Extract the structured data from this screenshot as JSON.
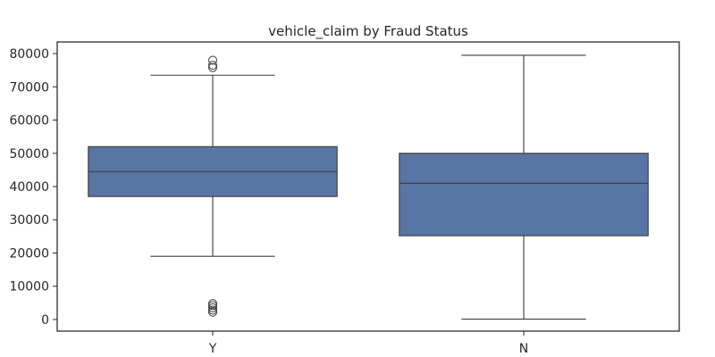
{
  "chart_data": {
    "type": "box",
    "title": "vehicle_claim by Fraud Status",
    "xlabel": "",
    "ylabel": "",
    "categories": [
      "Y",
      "N"
    ],
    "box_color": "#5875a4",
    "line_color": "#3b3b3b",
    "ylim": [
      -3500,
      83500
    ],
    "yticks": [
      0,
      10000,
      20000,
      30000,
      40000,
      50000,
      60000,
      70000,
      80000
    ],
    "boxes": [
      {
        "category": "Y",
        "whisker_low": 19000,
        "q1": 37000,
        "median": 44500,
        "q3": 52000,
        "whisker_high": 73500,
        "outliers": [
          78000,
          76500,
          75800,
          4800,
          4200,
          3500,
          2800,
          2200
        ]
      },
      {
        "category": "N",
        "whisker_low": 100,
        "q1": 25200,
        "median": 41000,
        "q3": 50000,
        "whisker_high": 79500,
        "outliers": []
      }
    ],
    "grid": false,
    "legend": "none"
  }
}
